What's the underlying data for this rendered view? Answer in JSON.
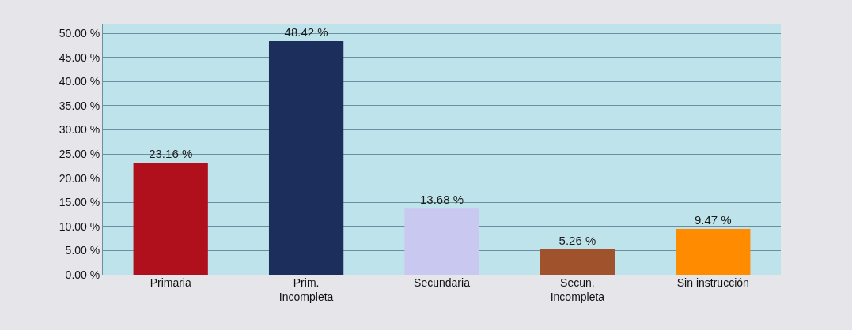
{
  "chart_data": {
    "type": "bar",
    "categories": [
      "Primaria",
      "Prim.\nIncompleta",
      "Secundaria",
      "Secun.\nIncompleta",
      "Sin instrucción"
    ],
    "values": [
      23.16,
      48.42,
      13.68,
      5.26,
      9.47
    ],
    "colors": [
      "#b0101c",
      "#1c2e5c",
      "#c8c8f0",
      "#a0522d",
      "#ff8c00"
    ],
    "value_labels": [
      "23.16 %",
      "48.42 %",
      "13.68 %",
      "5.26 %",
      "9.47 %"
    ],
    "ylim": [
      0,
      52
    ],
    "yticks": [
      {
        "value": 0,
        "label": "0.00 %"
      },
      {
        "value": 5,
        "label": "5.00 %"
      },
      {
        "value": 10,
        "label": "10.00 %"
      },
      {
        "value": 15,
        "label": "15.00 %"
      },
      {
        "value": 20,
        "label": "20.00 %"
      },
      {
        "value": 25,
        "label": "25.00 %"
      },
      {
        "value": 30,
        "label": "30.00 %"
      },
      {
        "value": 35,
        "label": "35.00 %"
      },
      {
        "value": 40,
        "label": "40.00 %"
      },
      {
        "value": 45,
        "label": "45.00 %"
      },
      {
        "value": 50,
        "label": "50.00 %"
      }
    ],
    "grid": "y",
    "legend": false
  }
}
